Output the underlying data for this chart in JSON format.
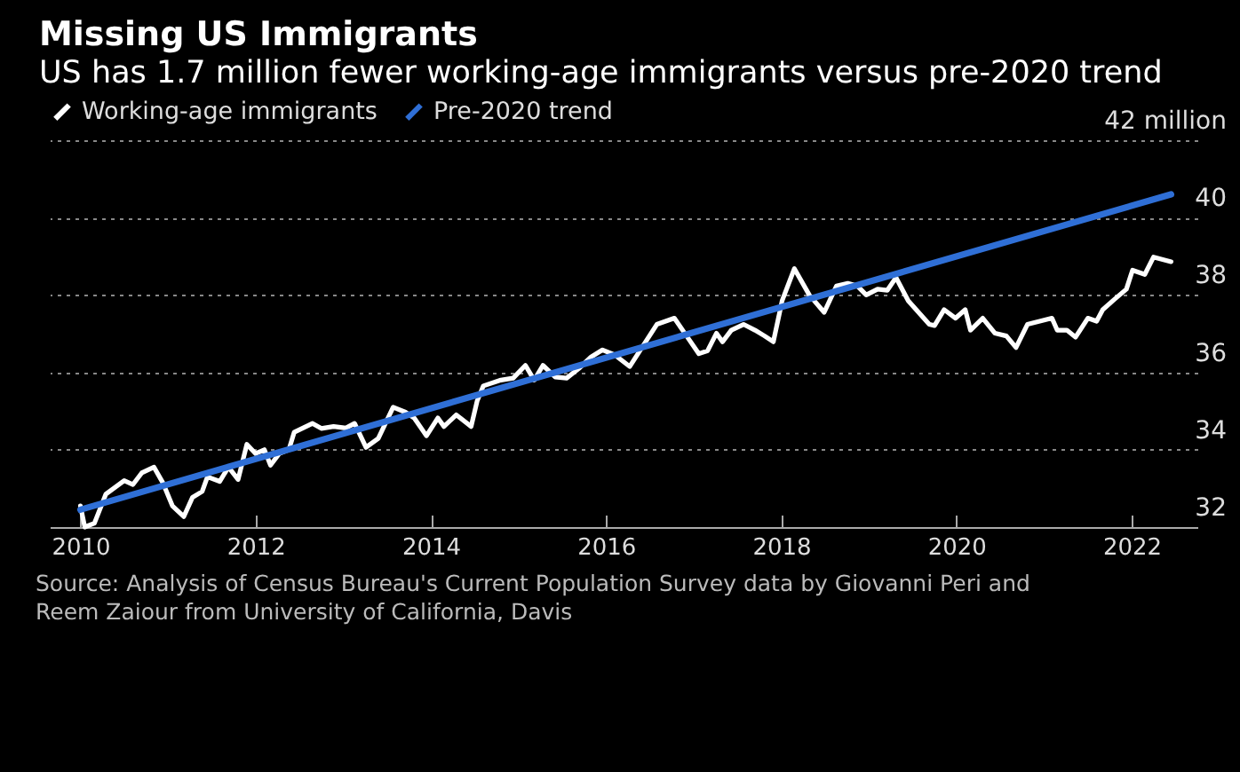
{
  "chart_data": {
    "type": "line",
    "title": "Missing US Immigrants",
    "subtitle": "US has 1.7 million fewer working-age immigrants versus pre-2020 trend",
    "x": [
      2010.0,
      2010.05,
      2010.16,
      2010.29,
      2010.5,
      2010.6,
      2010.7,
      2010.84,
      2010.94,
      2011.05,
      2011.18,
      2011.28,
      2011.39,
      2011.45,
      2011.59,
      2011.69,
      2011.8,
      2011.9,
      2012.0,
      2012.1,
      2012.17,
      2012.27,
      2012.38,
      2012.44,
      2012.65,
      2012.75,
      2012.89,
      2013.03,
      2013.13,
      2013.26,
      2013.4,
      2013.57,
      2013.71,
      2013.81,
      2013.95,
      2014.08,
      2014.15,
      2014.29,
      2014.46,
      2014.53,
      2014.6,
      2014.8,
      2014.94,
      2015.08,
      2015.18,
      2015.28,
      2015.42,
      2015.55,
      2015.69,
      2015.83,
      2015.96,
      2016.1,
      2016.27,
      2016.41,
      2016.58,
      2016.78,
      2016.92,
      2017.06,
      2017.16,
      2017.26,
      2017.33,
      2017.43,
      2017.57,
      2017.7,
      2017.81,
      2017.91,
      2018.01,
      2018.15,
      2018.32,
      2018.49,
      2018.63,
      2018.76,
      2018.87,
      2018.97,
      2019.1,
      2019.21,
      2019.31,
      2019.45,
      2019.69,
      2019.75,
      2019.86,
      2019.99,
      2020.1,
      2020.16,
      2020.3,
      2020.44,
      2020.57,
      2020.68,
      2020.81,
      2020.95,
      2021.09,
      2021.15,
      2021.26,
      2021.36,
      2021.5,
      2021.6,
      2021.67,
      2021.8,
      2021.94,
      2022.01,
      2022.15,
      2022.25,
      2022.45
    ],
    "series": [
      {
        "name": "Working-age immigrants",
        "color": "#ffffff",
        "values": [
          32.55,
          32.0,
          32.1,
          32.85,
          33.2,
          33.1,
          33.4,
          33.55,
          33.15,
          32.55,
          32.27,
          32.77,
          32.92,
          33.3,
          33.18,
          33.55,
          33.23,
          34.14,
          33.9,
          34.0,
          33.6,
          33.9,
          34.0,
          34.45,
          34.68,
          34.55,
          34.6,
          34.56,
          34.68,
          34.06,
          34.29,
          35.1,
          34.97,
          34.82,
          34.36,
          34.82,
          34.6,
          34.9,
          34.6,
          35.27,
          35.65,
          35.8,
          35.85,
          36.18,
          35.8,
          36.18,
          35.88,
          35.85,
          36.1,
          36.4,
          36.58,
          36.45,
          36.15,
          36.64,
          37.24,
          37.4,
          36.94,
          36.48,
          36.56,
          37.01,
          36.79,
          37.09,
          37.24,
          37.09,
          36.94,
          36.79,
          37.85,
          38.68,
          38.0,
          37.55,
          38.23,
          38.3,
          38.23,
          38.0,
          38.15,
          38.12,
          38.45,
          37.85,
          37.24,
          37.21,
          37.62,
          37.4,
          37.62,
          37.09,
          37.4,
          37.01,
          36.94,
          36.64,
          37.24,
          37.32,
          37.4,
          37.09,
          37.09,
          36.91,
          37.4,
          37.32,
          37.62,
          37.88,
          38.15,
          38.64,
          38.53,
          38.98,
          38.86
        ]
      },
      {
        "name": "Pre-2020 trend",
        "color": "#2f6fd6",
        "x": [
          2010.0,
          2022.45
        ],
        "values": [
          32.45,
          40.6
        ]
      }
    ],
    "xlim": [
      2009.65,
      2022.75
    ],
    "xticks": [
      2010,
      2012,
      2014,
      2016,
      2018,
      2020,
      2022
    ],
    "ylim": [
      32,
      42
    ],
    "yticks": [
      32,
      34,
      36,
      38,
      40,
      {
        "value": 42,
        "label": "42 million"
      }
    ],
    "grid": "y",
    "legend": "top left",
    "annotations": [
      "Source: Analysis of Census Bureau's Current Population Survey data by Giovanni Peri and Reem Zaiour from University of California, Davis"
    ]
  }
}
